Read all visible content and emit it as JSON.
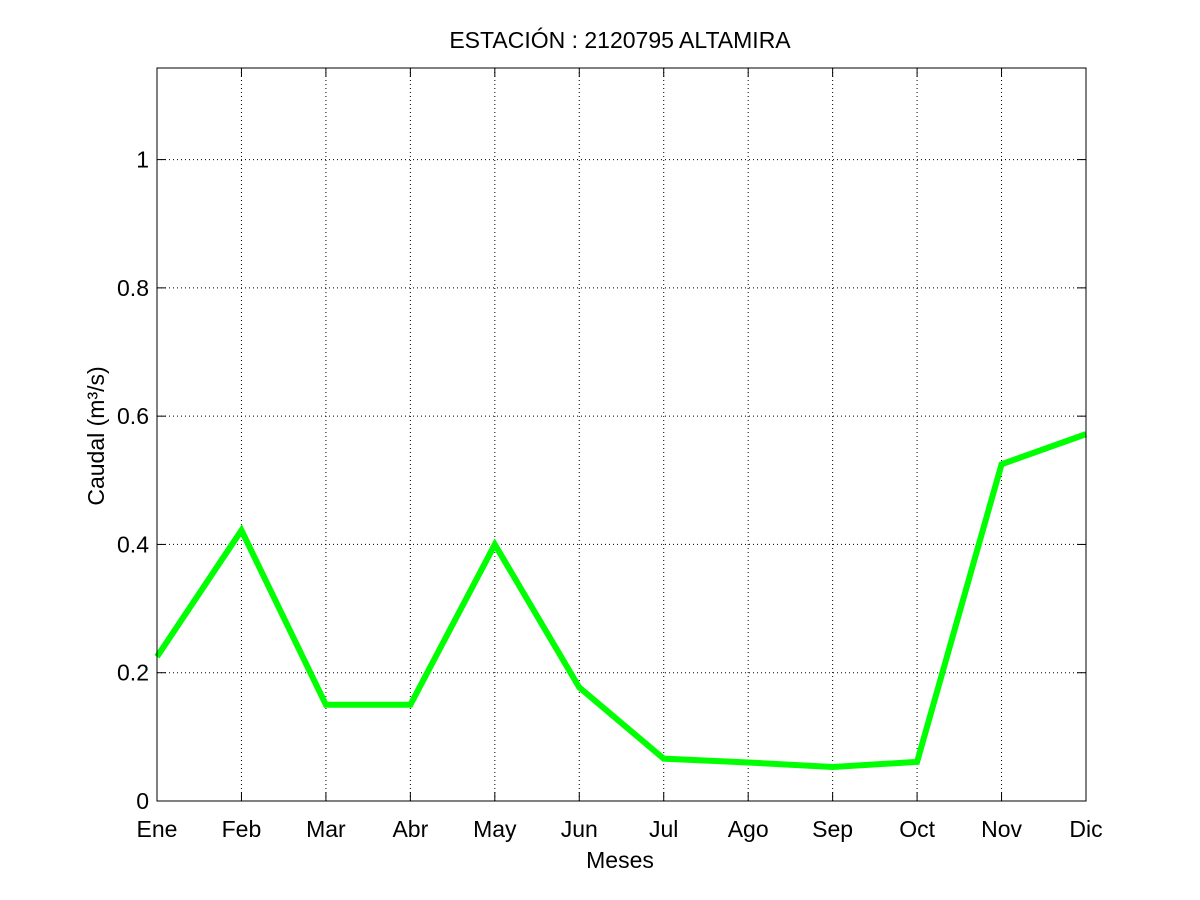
{
  "chart_data": {
    "type": "line",
    "title": "ESTACIÓN :  2120795  ALTAMIRA",
    "xlabel": "Meses",
    "ylabel": "Caudal (m³/s)",
    "categories": [
      "Ene",
      "Feb",
      "Mar",
      "Abr",
      "May",
      "Jun",
      "Jul",
      "Ago",
      "Sep",
      "Oct",
      "Nov",
      "Dic"
    ],
    "series": [
      {
        "values": [
          0.225,
          0.422,
          0.15,
          0.15,
          0.4,
          0.177,
          0.066,
          0.06,
          0.053,
          0.061,
          0.525,
          0.572
        ],
        "color": "#00ff00"
      }
    ],
    "ylim": [
      0,
      1.1428
    ],
    "yticks": [
      0,
      0.2,
      0.4,
      0.6,
      0.8,
      1
    ],
    "ytick_labels": [
      "0",
      "0.2",
      "0.4",
      "0.6",
      "0.8",
      "1"
    ],
    "grid": true,
    "grid_style": "dotted",
    "legend": "none"
  }
}
